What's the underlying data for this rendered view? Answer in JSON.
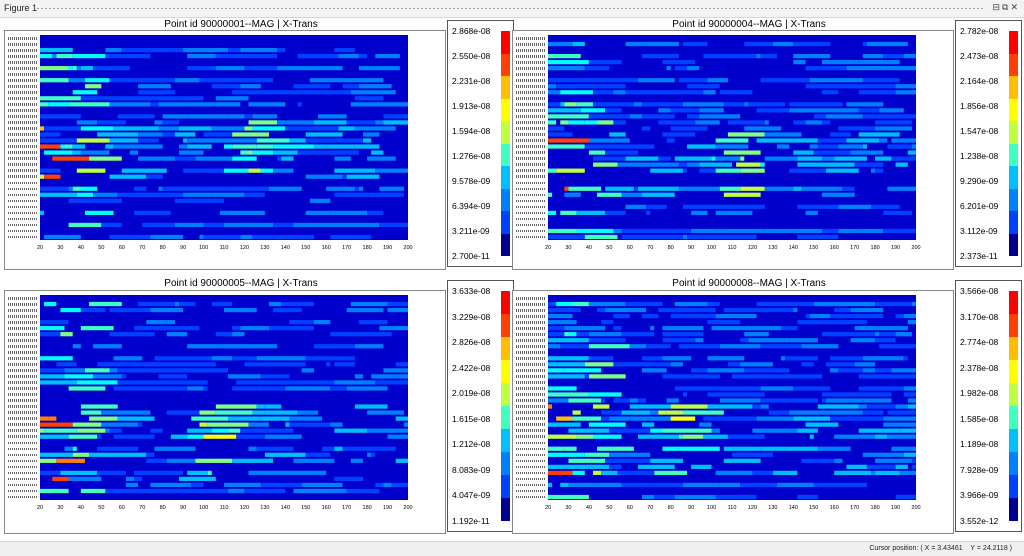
{
  "window": {
    "title": "Figure 1",
    "controls": {
      "dock": "⊟",
      "undock": "⧉",
      "close": "✕"
    }
  },
  "status": {
    "cursor_label": "Cursor position:",
    "x_label": "X =",
    "x_value": "3.43461",
    "y_label": "Y =",
    "y_value": "24.2118"
  },
  "colormap": [
    "#00008f",
    "#0000cc",
    "#0040ff",
    "#0080ff",
    "#00bfff",
    "#00ffff",
    "#40ffbf",
    "#80ff80",
    "#bfff40",
    "#ffff00",
    "#ffbf00",
    "#ff8000",
    "#ff4000",
    "#ff0000",
    "#c00000"
  ],
  "chart_data": [
    {
      "type": "heatmap",
      "title": "Point id 90000001--MAG | X-Trans",
      "x_ticks": [
        "20",
        "30",
        "40",
        "50",
        "60",
        "70",
        "80",
        "90",
        "100",
        "110",
        "120",
        "130",
        "140",
        "150",
        "160",
        "170",
        "180",
        "190",
        "200"
      ],
      "xlim": [
        20,
        200
      ],
      "colorbar_ticks": [
        "2.868e-08",
        "2.550e-08",
        "2.231e-08",
        "1.913e-08",
        "1.594e-08",
        "1.276e-08",
        "9.578e-09",
        "6.394e-09",
        "3.211e-09",
        "2.700e-11"
      ],
      "clim": [
        2.7e-11,
        2.868e-08
      ],
      "rows": 34,
      "pattern": {
        "seed": 11,
        "hot_x": 120,
        "hot_rows": [
          14,
          24
        ],
        "left_band": true,
        "right_extent": 180
      }
    },
    {
      "type": "heatmap",
      "title": "Point id 90000004--MAG | X-Trans",
      "x_ticks": [
        "20",
        "30",
        "40",
        "50",
        "60",
        "70",
        "80",
        "90",
        "100",
        "110",
        "120",
        "130",
        "140",
        "150",
        "160",
        "170",
        "180",
        "190",
        "200"
      ],
      "xlim": [
        20,
        200
      ],
      "colorbar_ticks": [
        "2.782e-08",
        "2.473e-08",
        "2.164e-08",
        "1.856e-08",
        "1.547e-08",
        "1.238e-08",
        "9.290e-09",
        "6.201e-09",
        "3.112e-09",
        "2.373e-11"
      ],
      "clim": [
        2.373e-11,
        2.782e-08
      ],
      "rows": 34,
      "pattern": {
        "seed": 23,
        "hot_x": 112,
        "hot_rows": [
          16,
          26
        ],
        "left_band": true,
        "right_extent": 190
      }
    },
    {
      "type": "heatmap",
      "title": "Point id 90000005--MAG | X-Trans",
      "x_ticks": [
        "20",
        "30",
        "40",
        "50",
        "60",
        "70",
        "80",
        "90",
        "100",
        "110",
        "120",
        "130",
        "140",
        "150",
        "160",
        "170",
        "180",
        "190",
        "200"
      ],
      "xlim": [
        20,
        200
      ],
      "colorbar_ticks": [
        "3.633e-08",
        "3.229e-08",
        "2.826e-08",
        "2.422e-08",
        "2.019e-08",
        "1.615e-08",
        "1.212e-08",
        "8.083e-09",
        "4.047e-09",
        "1.192e-11"
      ],
      "clim": [
        1.192e-11,
        3.633e-08
      ],
      "rows": 34,
      "pattern": {
        "seed": 37,
        "hot_x": 100,
        "hot_rows": [
          18,
          30
        ],
        "left_band": true,
        "right_extent": 200
      }
    },
    {
      "type": "heatmap",
      "title": "Point id 90000008--MAG | X-Trans",
      "x_ticks": [
        "20",
        "30",
        "40",
        "50",
        "60",
        "70",
        "80",
        "90",
        "100",
        "110",
        "120",
        "130",
        "140",
        "150",
        "160",
        "170",
        "180",
        "190",
        "200"
      ],
      "xlim": [
        20,
        200
      ],
      "colorbar_ticks": [
        "3.566e-08",
        "3.170e-08",
        "2.774e-08",
        "2.378e-08",
        "1.982e-08",
        "1.585e-08",
        "1.189e-08",
        "7.928e-09",
        "3.966e-09",
        "3.552e-12"
      ],
      "clim": [
        3.552e-12,
        3.566e-08
      ],
      "rows": 34,
      "pattern": {
        "seed": 41,
        "hot_x": 80,
        "hot_rows": [
          18,
          30
        ],
        "left_band": true,
        "right_extent": 200
      }
    }
  ]
}
